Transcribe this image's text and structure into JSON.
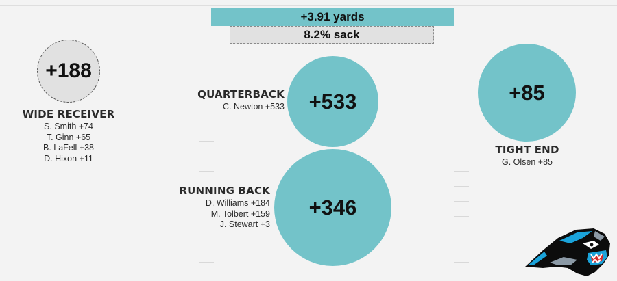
{
  "summary": {
    "yards_label": "+3.91 yards",
    "sack_label": "8.2% sack"
  },
  "colors": {
    "accent": "#73c3c9",
    "neutral": "#e1e1e1",
    "background": "#f3f3f3"
  },
  "positions": {
    "wide_receiver": {
      "label": "WIDE RECEIVER",
      "total": "+188",
      "players": [
        "S. Smith +74",
        "T. Ginn +65",
        "B. LaFell +38",
        "D. Hixon +11"
      ]
    },
    "quarterback": {
      "label": "QUARTERBACK",
      "total": "+533",
      "players": [
        "C. Newton +533"
      ]
    },
    "running_back": {
      "label": "RUNNING BACK",
      "total": "+346",
      "players": [
        "D. Williams +184",
        "M. Tolbert +159",
        "J. Stewart +3"
      ]
    },
    "tight_end": {
      "label": "TIGHT END",
      "total": "+85",
      "players": [
        "G. Olsen +85"
      ]
    }
  },
  "logo": {
    "icon": "panther-head-logo"
  }
}
